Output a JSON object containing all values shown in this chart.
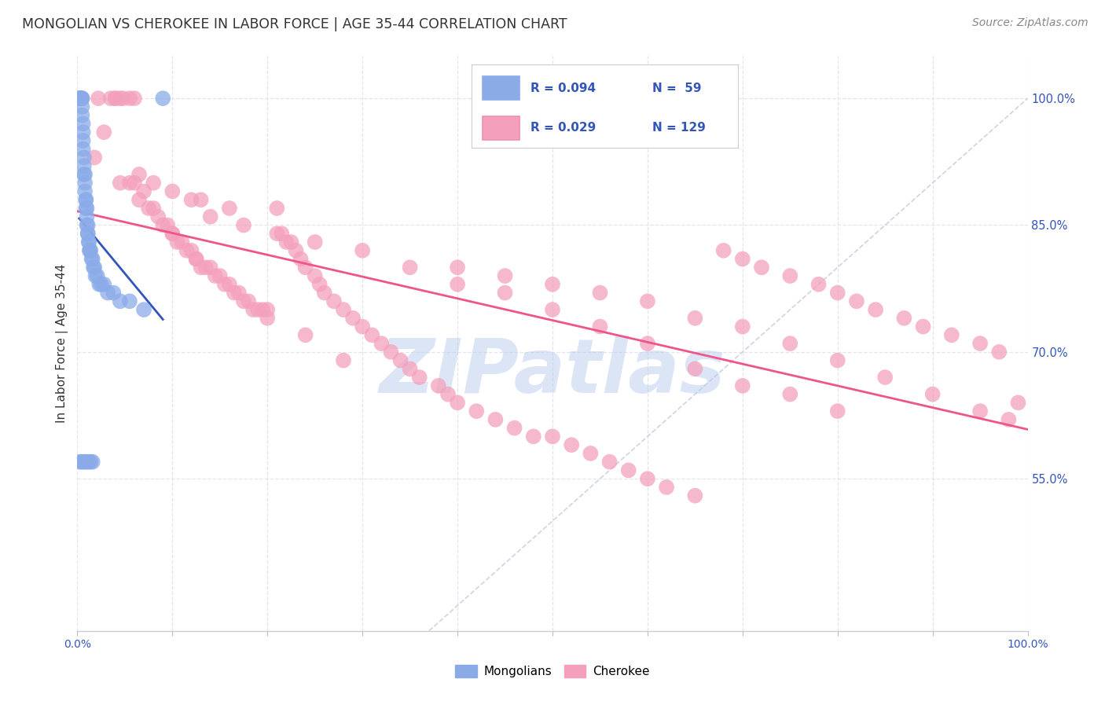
{
  "title": "MONGOLIAN VS CHEROKEE IN LABOR FORCE | AGE 35-44 CORRELATION CHART",
  "source": "Source: ZipAtlas.com",
  "ylabel": "In Labor Force | Age 35-44",
  "xlim": [
    0.0,
    1.0
  ],
  "ylim": [
    0.37,
    1.05
  ],
  "y_ticks_right": [
    0.55,
    0.7,
    0.85,
    1.0
  ],
  "y_tick_labels_right": [
    "55.0%",
    "70.0%",
    "85.0%",
    "100.0%"
  ],
  "x_ticks": [
    0.0,
    0.1,
    0.2,
    0.3,
    0.4,
    0.5,
    0.6,
    0.7,
    0.8,
    0.9,
    1.0
  ],
  "watermark_text": "ZIPatlas",
  "mongolian_color": "#8aabe8",
  "cherokee_color": "#f4a0bc",
  "trend_mongolian_color": "#3355bb",
  "trend_cherokee_color": "#ee5588",
  "diagonal_color": "#c5cce0",
  "background_color": "#ffffff",
  "grid_color": "#e4e4ee",
  "legend_entries": [
    {
      "label": "R = 0.094",
      "n_label": "N =  59",
      "color": "#8aabe8"
    },
    {
      "label": "R = 0.029",
      "n_label": "N = 129",
      "color": "#f4a0bc"
    }
  ],
  "mongolian_x": [
    0.002,
    0.002,
    0.003,
    0.003,
    0.003,
    0.004,
    0.004,
    0.004,
    0.005,
    0.005,
    0.005,
    0.005,
    0.006,
    0.006,
    0.006,
    0.006,
    0.007,
    0.007,
    0.007,
    0.008,
    0.008,
    0.008,
    0.009,
    0.009,
    0.009,
    0.01,
    0.01,
    0.01,
    0.011,
    0.011,
    0.011,
    0.012,
    0.012,
    0.013,
    0.013,
    0.014,
    0.015,
    0.016,
    0.017,
    0.018,
    0.019,
    0.021,
    0.023,
    0.025,
    0.028,
    0.032,
    0.038,
    0.045,
    0.055,
    0.07,
    0.003,
    0.004,
    0.006,
    0.008,
    0.01,
    0.012,
    0.014,
    0.016,
    0.09
  ],
  "mongolian_y": [
    1.0,
    1.0,
    1.0,
    1.0,
    1.0,
    1.0,
    1.0,
    1.0,
    1.0,
    1.0,
    0.99,
    0.98,
    0.97,
    0.96,
    0.95,
    0.94,
    0.93,
    0.92,
    0.91,
    0.91,
    0.9,
    0.89,
    0.88,
    0.88,
    0.87,
    0.87,
    0.86,
    0.85,
    0.85,
    0.84,
    0.84,
    0.83,
    0.83,
    0.82,
    0.82,
    0.82,
    0.81,
    0.81,
    0.8,
    0.8,
    0.79,
    0.79,
    0.78,
    0.78,
    0.78,
    0.77,
    0.77,
    0.76,
    0.76,
    0.75,
    0.57,
    0.57,
    0.57,
    0.57,
    0.57,
    0.57,
    0.57,
    0.57,
    1.0
  ],
  "cherokee_x": [
    0.018,
    0.022,
    0.028,
    0.035,
    0.04,
    0.04,
    0.045,
    0.048,
    0.055,
    0.06,
    0.065,
    0.07,
    0.075,
    0.08,
    0.085,
    0.09,
    0.095,
    0.1,
    0.1,
    0.105,
    0.11,
    0.115,
    0.12,
    0.125,
    0.125,
    0.13,
    0.135,
    0.14,
    0.145,
    0.15,
    0.155,
    0.16,
    0.165,
    0.17,
    0.175,
    0.18,
    0.185,
    0.19,
    0.195,
    0.2,
    0.21,
    0.215,
    0.22,
    0.225,
    0.23,
    0.235,
    0.24,
    0.25,
    0.255,
    0.26,
    0.27,
    0.28,
    0.29,
    0.3,
    0.31,
    0.32,
    0.33,
    0.34,
    0.35,
    0.36,
    0.38,
    0.39,
    0.4,
    0.42,
    0.44,
    0.46,
    0.48,
    0.5,
    0.52,
    0.54,
    0.56,
    0.58,
    0.6,
    0.62,
    0.65,
    0.68,
    0.7,
    0.72,
    0.75,
    0.78,
    0.8,
    0.82,
    0.84,
    0.87,
    0.89,
    0.92,
    0.95,
    0.97,
    0.99,
    0.13,
    0.16,
    0.2,
    0.24,
    0.28,
    0.14,
    0.175,
    0.21,
    0.25,
    0.3,
    0.35,
    0.4,
    0.45,
    0.5,
    0.55,
    0.6,
    0.65,
    0.7,
    0.75,
    0.8,
    0.06,
    0.08,
    0.1,
    0.12,
    0.045,
    0.055,
    0.065,
    0.4,
    0.45,
    0.5,
    0.55,
    0.6,
    0.65,
    0.7,
    0.75,
    0.8,
    0.85,
    0.9,
    0.95,
    0.98
  ],
  "cherokee_y": [
    0.93,
    1.0,
    0.96,
    1.0,
    1.0,
    1.0,
    1.0,
    1.0,
    1.0,
    1.0,
    0.91,
    0.89,
    0.87,
    0.87,
    0.86,
    0.85,
    0.85,
    0.84,
    0.84,
    0.83,
    0.83,
    0.82,
    0.82,
    0.81,
    0.81,
    0.8,
    0.8,
    0.8,
    0.79,
    0.79,
    0.78,
    0.78,
    0.77,
    0.77,
    0.76,
    0.76,
    0.75,
    0.75,
    0.75,
    0.74,
    0.87,
    0.84,
    0.83,
    0.83,
    0.82,
    0.81,
    0.8,
    0.79,
    0.78,
    0.77,
    0.76,
    0.75,
    0.74,
    0.73,
    0.72,
    0.71,
    0.7,
    0.69,
    0.68,
    0.67,
    0.66,
    0.65,
    0.64,
    0.63,
    0.62,
    0.61,
    0.6,
    0.6,
    0.59,
    0.58,
    0.57,
    0.56,
    0.55,
    0.54,
    0.53,
    0.82,
    0.81,
    0.8,
    0.79,
    0.78,
    0.77,
    0.76,
    0.75,
    0.74,
    0.73,
    0.72,
    0.71,
    0.7,
    0.64,
    0.88,
    0.87,
    0.75,
    0.72,
    0.69,
    0.86,
    0.85,
    0.84,
    0.83,
    0.82,
    0.8,
    0.78,
    0.77,
    0.75,
    0.73,
    0.71,
    0.68,
    0.66,
    0.65,
    0.63,
    0.9,
    0.9,
    0.89,
    0.88,
    0.9,
    0.9,
    0.88,
    0.8,
    0.79,
    0.78,
    0.77,
    0.76,
    0.74,
    0.73,
    0.71,
    0.69,
    0.67,
    0.65,
    0.63,
    0.62
  ]
}
